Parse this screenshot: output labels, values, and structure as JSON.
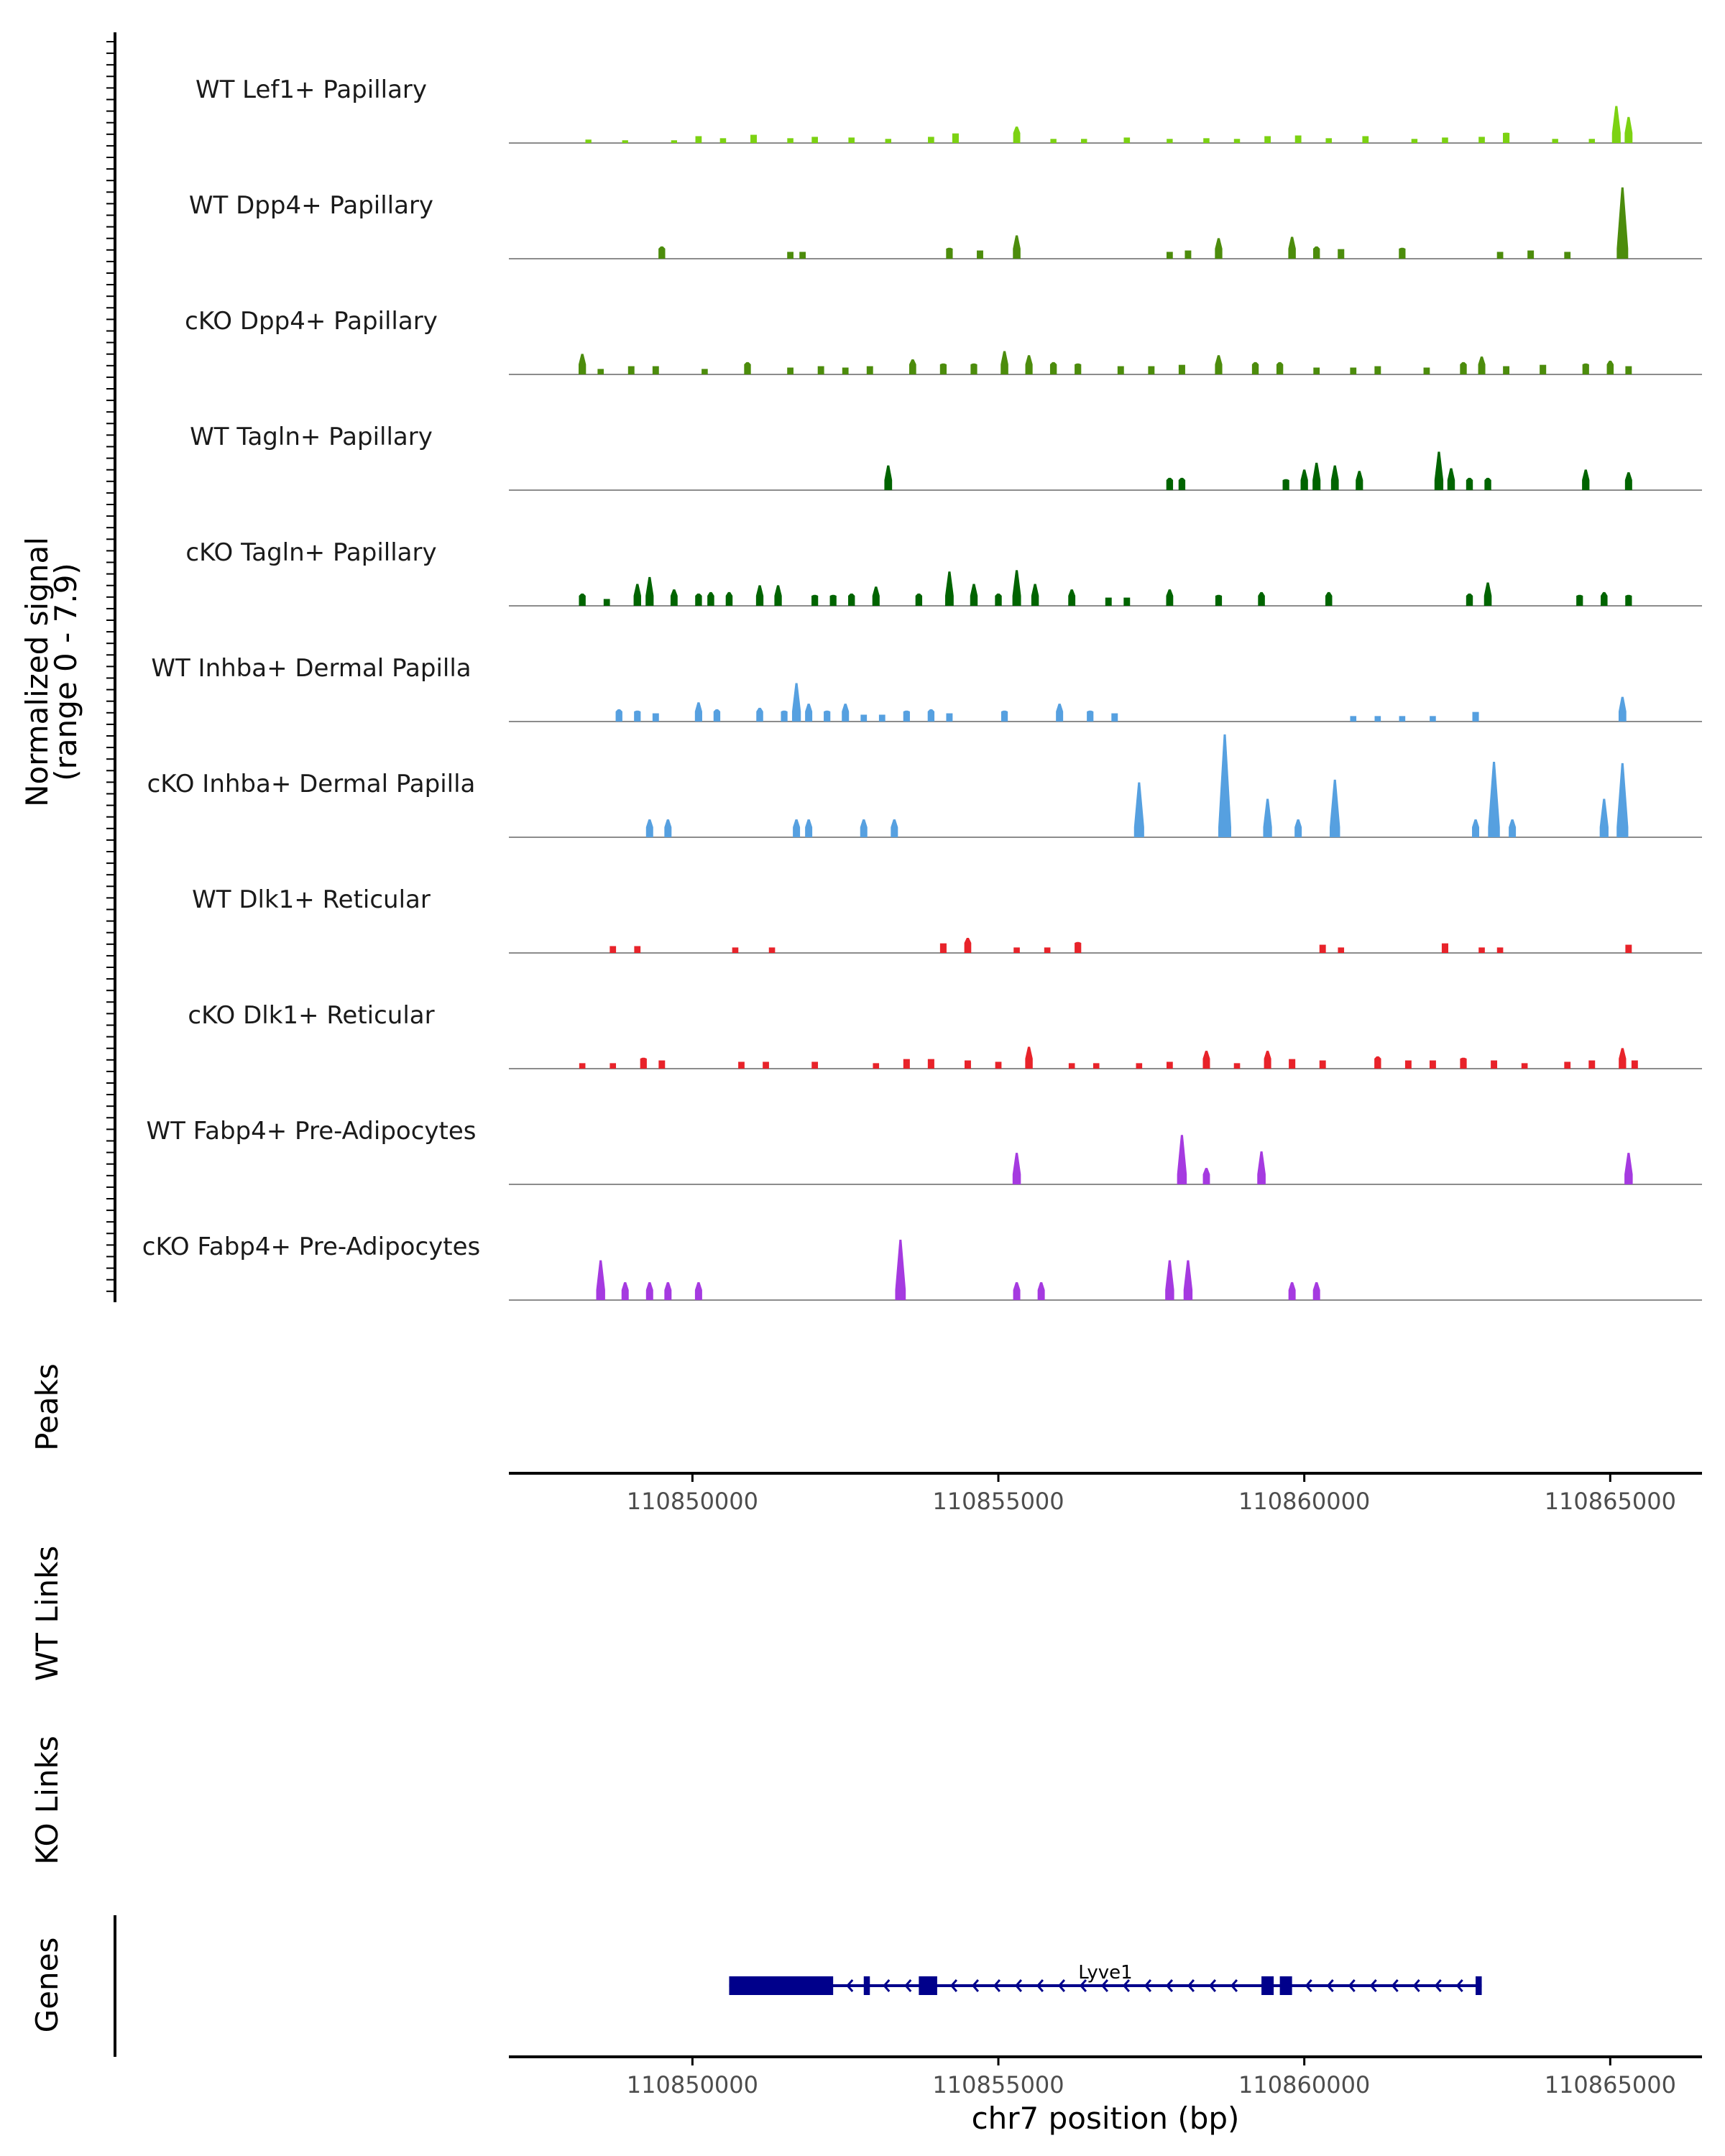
{
  "chart_data": {
    "type": "coverage-track",
    "chromosome": "chr7",
    "region": [
      110847000,
      110866500
    ],
    "xlabel": "chr7 position (bp)",
    "x_ticks": [
      110850000,
      110855000,
      110860000,
      110865000
    ],
    "y_label": "Normalized signal",
    "y_range_label": "(range 0 - 7.9)",
    "y_range": [
      0,
      7.9
    ],
    "panel_labels": {
      "peaks": "Peaks",
      "wt_links": "WT Links",
      "ko_links": "KO Links",
      "genes": "Genes"
    },
    "tracks": [
      {
        "name": "WT Lef1+ Papillary",
        "color": "#7CD212",
        "peaks": [
          [
            110848300,
            0.25
          ],
          [
            110848900,
            0.2
          ],
          [
            110849700,
            0.2
          ],
          [
            110850100,
            0.5
          ],
          [
            110850500,
            0.35
          ],
          [
            110851000,
            0.6
          ],
          [
            110851600,
            0.35
          ],
          [
            110852000,
            0.45
          ],
          [
            110852600,
            0.4
          ],
          [
            110853200,
            0.3
          ],
          [
            110853900,
            0.45
          ],
          [
            110854300,
            0.7
          ],
          [
            110855300,
            1.2
          ],
          [
            110855900,
            0.3
          ],
          [
            110856400,
            0.3
          ],
          [
            110857100,
            0.4
          ],
          [
            110857800,
            0.3
          ],
          [
            110858400,
            0.35
          ],
          [
            110858900,
            0.3
          ],
          [
            110859400,
            0.5
          ],
          [
            110859900,
            0.55
          ],
          [
            110860400,
            0.35
          ],
          [
            110861000,
            0.5
          ],
          [
            110861800,
            0.3
          ],
          [
            110862300,
            0.4
          ],
          [
            110862900,
            0.45
          ],
          [
            110863300,
            0.75
          ],
          [
            110864100,
            0.3
          ],
          [
            110864700,
            0.3
          ],
          [
            110865100,
            2.7
          ],
          [
            110865300,
            1.9
          ]
        ]
      },
      {
        "name": "WT Dpp4+ Papillary",
        "color": "#4C8C0C",
        "peaks": [
          [
            110849500,
            0.9
          ],
          [
            110851600,
            0.5
          ],
          [
            110851800,
            0.5
          ],
          [
            110854200,
            0.8
          ],
          [
            110854700,
            0.6
          ],
          [
            110855300,
            1.7
          ],
          [
            110857800,
            0.5
          ],
          [
            110858100,
            0.6
          ],
          [
            110858600,
            1.5
          ],
          [
            110859800,
            1.6
          ],
          [
            110860200,
            0.9
          ],
          [
            110860600,
            0.7
          ],
          [
            110861600,
            0.8
          ],
          [
            110863200,
            0.5
          ],
          [
            110863700,
            0.6
          ],
          [
            110864300,
            0.5
          ],
          [
            110865200,
            5.2
          ]
        ]
      },
      {
        "name": "cKO Dpp4+ Papillary",
        "color": "#4C8C0C",
        "peaks": [
          [
            110848200,
            1.5
          ],
          [
            110848500,
            0.4
          ],
          [
            110849000,
            0.6
          ],
          [
            110849400,
            0.6
          ],
          [
            110850200,
            0.4
          ],
          [
            110850900,
            0.9
          ],
          [
            110851600,
            0.5
          ],
          [
            110852100,
            0.6
          ],
          [
            110852500,
            0.5
          ],
          [
            110852900,
            0.6
          ],
          [
            110853600,
            1.1
          ],
          [
            110854100,
            0.8
          ],
          [
            110854600,
            0.8
          ],
          [
            110855100,
            1.7
          ],
          [
            110855500,
            1.4
          ],
          [
            110855900,
            0.9
          ],
          [
            110856300,
            0.8
          ],
          [
            110857000,
            0.6
          ],
          [
            110857500,
            0.6
          ],
          [
            110858000,
            0.7
          ],
          [
            110858600,
            1.4
          ],
          [
            110859200,
            0.9
          ],
          [
            110859600,
            0.9
          ],
          [
            110860200,
            0.5
          ],
          [
            110860800,
            0.5
          ],
          [
            110861200,
            0.6
          ],
          [
            110862000,
            0.5
          ],
          [
            110862600,
            0.9
          ],
          [
            110862900,
            1.3
          ],
          [
            110863300,
            0.6
          ],
          [
            110863900,
            0.7
          ],
          [
            110864600,
            0.8
          ],
          [
            110865000,
            1.0
          ],
          [
            110865300,
            0.6
          ]
        ]
      },
      {
        "name": "WT Tagln+ Papillary",
        "color": "#006400",
        "peaks": [
          [
            110853200,
            1.8
          ],
          [
            110857800,
            0.9
          ],
          [
            110858000,
            0.9
          ],
          [
            110859700,
            0.8
          ],
          [
            110860000,
            1.5
          ],
          [
            110860200,
            2.0
          ],
          [
            110860500,
            1.8
          ],
          [
            110860900,
            1.4
          ],
          [
            110862200,
            2.8
          ],
          [
            110862400,
            1.6
          ],
          [
            110862700,
            0.9
          ],
          [
            110863000,
            0.9
          ],
          [
            110864600,
            1.5
          ],
          [
            110865300,
            1.3
          ]
        ]
      },
      {
        "name": "cKO Tagln+ Papillary",
        "color": "#006400",
        "peaks": [
          [
            110848200,
            0.9
          ],
          [
            110848600,
            0.5
          ],
          [
            110849100,
            1.6
          ],
          [
            110849300,
            2.1
          ],
          [
            110849700,
            1.2
          ],
          [
            110850100,
            0.9
          ],
          [
            110850300,
            1.0
          ],
          [
            110850600,
            1.0
          ],
          [
            110851100,
            1.5
          ],
          [
            110851400,
            1.5
          ],
          [
            110852000,
            0.8
          ],
          [
            110852300,
            0.8
          ],
          [
            110852600,
            0.9
          ],
          [
            110853000,
            1.4
          ],
          [
            110853700,
            0.9
          ],
          [
            110854200,
            2.5
          ],
          [
            110854600,
            1.6
          ],
          [
            110855000,
            0.9
          ],
          [
            110855300,
            2.6
          ],
          [
            110855600,
            1.6
          ],
          [
            110856200,
            1.2
          ],
          [
            110856800,
            0.6
          ],
          [
            110857100,
            0.6
          ],
          [
            110857800,
            1.2
          ],
          [
            110858600,
            0.8
          ],
          [
            110859300,
            1.0
          ],
          [
            110860400,
            1.0
          ],
          [
            110862700,
            0.9
          ],
          [
            110863000,
            1.7
          ],
          [
            110864500,
            0.8
          ],
          [
            110864900,
            1.0
          ],
          [
            110865300,
            0.8
          ]
        ]
      },
      {
        "name": "WT Inhba+ Dermal Papilla",
        "color": "#56A0E0",
        "peaks": [
          [
            110848800,
            0.9
          ],
          [
            110849100,
            0.8
          ],
          [
            110849400,
            0.6
          ],
          [
            110850100,
            1.4
          ],
          [
            110850400,
            0.9
          ],
          [
            110851100,
            1.0
          ],
          [
            110851500,
            0.8
          ],
          [
            110851700,
            2.8
          ],
          [
            110851900,
            1.3
          ],
          [
            110852200,
            0.8
          ],
          [
            110852500,
            1.3
          ],
          [
            110852800,
            0.5
          ],
          [
            110853100,
            0.5
          ],
          [
            110853500,
            0.8
          ],
          [
            110853900,
            0.9
          ],
          [
            110854200,
            0.6
          ],
          [
            110855100,
            0.8
          ],
          [
            110856000,
            1.3
          ],
          [
            110856500,
            0.8
          ],
          [
            110856900,
            0.6
          ],
          [
            110860800,
            0.4
          ],
          [
            110861200,
            0.4
          ],
          [
            110861600,
            0.4
          ],
          [
            110862100,
            0.4
          ],
          [
            110862800,
            0.7
          ],
          [
            110865200,
            1.8
          ]
        ]
      },
      {
        "name": "cKO Inhba+ Dermal Papilla",
        "color": "#56A0E0",
        "peaks": [
          [
            110849300,
            1.3
          ],
          [
            110849600,
            1.3
          ],
          [
            110851700,
            1.3
          ],
          [
            110851900,
            1.3
          ],
          [
            110852800,
            1.3
          ],
          [
            110853300,
            1.3
          ],
          [
            110857300,
            4.0
          ],
          [
            110858700,
            7.5
          ],
          [
            110859400,
            2.8
          ],
          [
            110859900,
            1.3
          ],
          [
            110860500,
            4.2
          ],
          [
            110862800,
            1.3
          ],
          [
            110863100,
            5.5
          ],
          [
            110863400,
            1.3
          ],
          [
            110864900,
            2.8
          ],
          [
            110865200,
            5.4
          ]
        ]
      },
      {
        "name": "WT Dlk1+ Reticular",
        "color": "#E8232A",
        "peaks": [
          [
            110848700,
            0.5
          ],
          [
            110849100,
            0.5
          ],
          [
            110850700,
            0.4
          ],
          [
            110851300,
            0.4
          ],
          [
            110854100,
            0.7
          ],
          [
            110854500,
            1.1
          ],
          [
            110855300,
            0.4
          ],
          [
            110855800,
            0.4
          ],
          [
            110856300,
            0.8
          ],
          [
            110860300,
            0.6
          ],
          [
            110860600,
            0.4
          ],
          [
            110862300,
            0.7
          ],
          [
            110862900,
            0.4
          ],
          [
            110863200,
            0.4
          ],
          [
            110865300,
            0.6
          ]
        ]
      },
      {
        "name": "cKO Dlk1+ Reticular",
        "color": "#E8232A",
        "peaks": [
          [
            110848200,
            0.4
          ],
          [
            110848700,
            0.4
          ],
          [
            110849200,
            0.8
          ],
          [
            110849500,
            0.6
          ],
          [
            110850800,
            0.5
          ],
          [
            110851200,
            0.5
          ],
          [
            110852000,
            0.5
          ],
          [
            110853000,
            0.4
          ],
          [
            110853500,
            0.7
          ],
          [
            110853900,
            0.7
          ],
          [
            110854500,
            0.6
          ],
          [
            110855000,
            0.5
          ],
          [
            110855500,
            1.6
          ],
          [
            110856200,
            0.4
          ],
          [
            110856600,
            0.4
          ],
          [
            110857300,
            0.4
          ],
          [
            110857800,
            0.5
          ],
          [
            110858400,
            1.3
          ],
          [
            110858900,
            0.4
          ],
          [
            110859400,
            1.3
          ],
          [
            110859800,
            0.7
          ],
          [
            110860300,
            0.6
          ],
          [
            110861200,
            0.9
          ],
          [
            110861700,
            0.6
          ],
          [
            110862100,
            0.6
          ],
          [
            110862600,
            0.8
          ],
          [
            110863100,
            0.6
          ],
          [
            110863600,
            0.4
          ],
          [
            110864300,
            0.5
          ],
          [
            110864700,
            0.6
          ],
          [
            110865200,
            1.5
          ],
          [
            110865400,
            0.6
          ]
        ]
      },
      {
        "name": "WT Fabp4+ Pre-Adipocytes",
        "color": "#A53AE0",
        "peaks": [
          [
            110855300,
            2.3
          ],
          [
            110858000,
            3.6
          ],
          [
            110858400,
            1.2
          ],
          [
            110859300,
            2.4
          ],
          [
            110865300,
            2.3
          ]
        ]
      },
      {
        "name": "cKO Fabp4+ Pre-Adipocytes",
        "color": "#A53AE0",
        "peaks": [
          [
            110848500,
            2.9
          ],
          [
            110848900,
            1.3
          ],
          [
            110849300,
            1.3
          ],
          [
            110849600,
            1.3
          ],
          [
            110850100,
            1.3
          ],
          [
            110853400,
            4.4
          ],
          [
            110855300,
            1.3
          ],
          [
            110855700,
            1.3
          ],
          [
            110857800,
            2.9
          ],
          [
            110858100,
            2.9
          ],
          [
            110859800,
            1.3
          ],
          [
            110860200,
            1.3
          ]
        ]
      }
    ],
    "gene": {
      "name": "Lyve1",
      "color": "#00008B",
      "strand": "-",
      "start": 110850600,
      "end": 110862900,
      "exons": [
        [
          110850600,
          110852300
        ],
        [
          110852800,
          110852900
        ],
        [
          110853700,
          110854000
        ],
        [
          110859300,
          110859500
        ],
        [
          110859600,
          110859800
        ],
        [
          110862800,
          110862900
        ]
      ]
    }
  }
}
